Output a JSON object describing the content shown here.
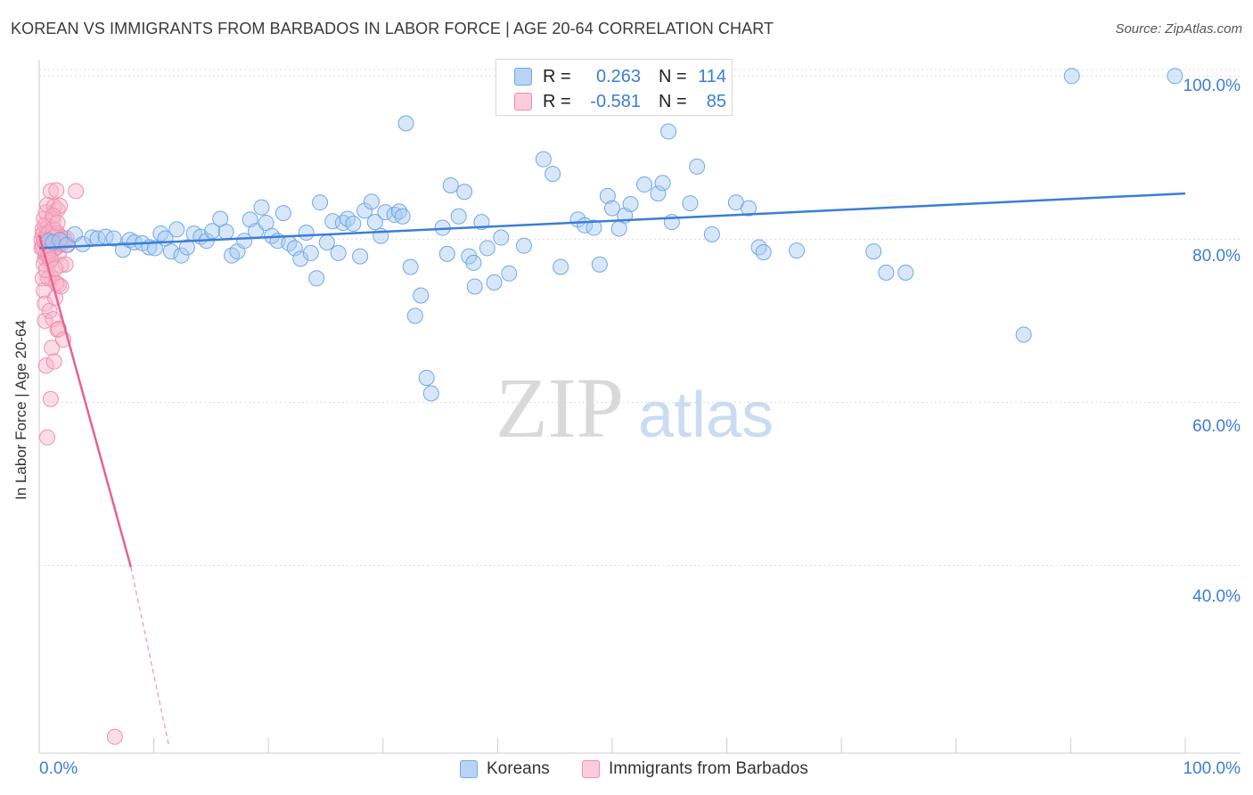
{
  "title": "KOREAN VS IMMIGRANTS FROM BARBADOS IN LABOR FORCE | AGE 20-64 CORRELATION CHART",
  "source": "Source: ZipAtlas.com",
  "watermark": {
    "zip": "ZIP",
    "atlas": "atlas"
  },
  "legend_top": {
    "rows": [
      {
        "r_label": "R =",
        "r_value": "0.263",
        "n_label": "N =",
        "n_value": "114",
        "color": "#6fa8e8"
      },
      {
        "r_label": "R =",
        "r_value": "-0.581",
        "n_label": "N =",
        "n_value": "85",
        "color": "#f28bab"
      }
    ]
  },
  "legend_bottom": [
    {
      "label": "Koreans",
      "color": "#6fa8e8"
    },
    {
      "label": "Immigrants from Barbados",
      "color": "#f28bab"
    }
  ],
  "colors": {
    "blue": "#3b7dd8",
    "blue_fill": "#a9c9f0",
    "pink": "#e8628f",
    "pink_fill": "#f7b3c8",
    "grid": "#dddddd",
    "tick_text": "#3b7dd8"
  },
  "chart_data": {
    "type": "scatter",
    "title": "KOREAN VS IMMIGRANTS FROM BARBADOS IN LABOR FORCE | AGE 20-64 CORRELATION CHART",
    "xlabel": "",
    "ylabel": "In Labor Force | Age 20-64",
    "xlim": [
      0,
      100
    ],
    "ylim": [
      17,
      102
    ],
    "x_tick_labels": [
      "0.0%",
      "100.0%"
    ],
    "y_ticks": [
      40,
      60,
      80,
      100
    ],
    "y_tick_labels": [
      "40.0%",
      "60.0%",
      "80.0%",
      "100.0%"
    ],
    "grid": true,
    "legend": "bottom-center",
    "series": [
      {
        "name": "Koreans",
        "color": "#6fa8e8",
        "trend": {
          "x": [
            0,
            100
          ],
          "y": [
            78.9,
            85.6
          ],
          "style": "solid"
        },
        "points": [
          [
            0.8,
            79.8
          ],
          [
            1.2,
            79.6
          ],
          [
            1.8,
            79.9
          ],
          [
            2.4,
            79.3
          ],
          [
            3.1,
            80.6
          ],
          [
            3.8,
            79.4
          ],
          [
            4.6,
            80.2
          ],
          [
            5.1,
            80.1
          ],
          [
            5.8,
            80.3
          ],
          [
            6.5,
            80.1
          ],
          [
            7.3,
            78.7
          ],
          [
            7.9,
            79.9
          ],
          [
            8.3,
            79.6
          ],
          [
            9.0,
            79.5
          ],
          [
            9.6,
            79.0
          ],
          [
            10.1,
            78.9
          ],
          [
            10.6,
            80.7
          ],
          [
            11.0,
            80.1
          ],
          [
            11.5,
            78.5
          ],
          [
            12.0,
            81.2
          ],
          [
            12.4,
            78.0
          ],
          [
            12.9,
            79.0
          ],
          [
            13.5,
            80.7
          ],
          [
            14.1,
            80.3
          ],
          [
            14.6,
            79.8
          ],
          [
            15.1,
            81.0
          ],
          [
            15.8,
            82.5
          ],
          [
            16.3,
            80.9
          ],
          [
            16.8,
            78.0
          ],
          [
            17.3,
            78.5
          ],
          [
            17.9,
            79.8
          ],
          [
            18.4,
            82.4
          ],
          [
            18.9,
            81.0
          ],
          [
            19.4,
            83.9
          ],
          [
            19.8,
            82.0
          ],
          [
            20.3,
            80.4
          ],
          [
            20.8,
            79.8
          ],
          [
            21.3,
            83.2
          ],
          [
            21.8,
            79.5
          ],
          [
            22.3,
            78.9
          ],
          [
            22.8,
            77.6
          ],
          [
            23.3,
            80.8
          ],
          [
            23.7,
            78.3
          ],
          [
            24.2,
            75.2
          ],
          [
            24.5,
            84.5
          ],
          [
            25.1,
            79.6
          ],
          [
            25.6,
            82.2
          ],
          [
            26.1,
            78.3
          ],
          [
            26.5,
            82.0
          ],
          [
            26.9,
            82.5
          ],
          [
            27.4,
            81.9
          ],
          [
            28.0,
            77.9
          ],
          [
            28.4,
            83.5
          ],
          [
            29.0,
            84.6
          ],
          [
            29.3,
            82.1
          ],
          [
            29.8,
            80.4
          ],
          [
            30.2,
            83.3
          ],
          [
            31.0,
            83.0
          ],
          [
            31.4,
            83.4
          ],
          [
            31.7,
            82.8
          ],
          [
            32.0,
            94.2
          ],
          [
            32.4,
            76.6
          ],
          [
            32.8,
            70.6
          ],
          [
            33.3,
            73.1
          ],
          [
            33.8,
            63.0
          ],
          [
            34.2,
            61.1
          ],
          [
            35.2,
            81.4
          ],
          [
            35.6,
            78.2
          ],
          [
            35.9,
            86.6
          ],
          [
            36.6,
            82.8
          ],
          [
            37.1,
            85.8
          ],
          [
            37.5,
            77.9
          ],
          [
            38.0,
            74.2
          ],
          [
            38.6,
            82.1
          ],
          [
            39.1,
            78.9
          ],
          [
            39.7,
            74.7
          ],
          [
            40.3,
            80.2
          ],
          [
            41.0,
            75.8
          ],
          [
            44.0,
            89.8
          ],
          [
            44.8,
            88.0
          ],
          [
            45.5,
            76.6
          ],
          [
            47.0,
            82.4
          ],
          [
            47.6,
            81.7
          ],
          [
            48.4,
            81.4
          ],
          [
            48.9,
            76.9
          ],
          [
            49.6,
            85.3
          ],
          [
            50.0,
            83.8
          ],
          [
            50.6,
            81.3
          ],
          [
            51.1,
            82.9
          ],
          [
            51.6,
            84.3
          ],
          [
            52.8,
            86.7
          ],
          [
            54.0,
            85.6
          ],
          [
            54.4,
            86.9
          ],
          [
            54.9,
            93.2
          ],
          [
            55.2,
            82.1
          ],
          [
            57.4,
            88.9
          ],
          [
            58.7,
            80.6
          ],
          [
            60.8,
            84.5
          ],
          [
            61.9,
            83.8
          ],
          [
            62.8,
            79.0
          ],
          [
            63.2,
            78.4
          ],
          [
            66.1,
            78.6
          ],
          [
            72.8,
            78.5
          ],
          [
            73.9,
            75.9
          ],
          [
            75.6,
            75.9
          ],
          [
            85.9,
            68.3
          ],
          [
            90.1,
            100.0
          ],
          [
            99.1,
            100.0
          ],
          [
            41.0,
            99.9
          ],
          [
            37.9,
            77.1
          ],
          [
            42.3,
            79.2
          ],
          [
            56.8,
            84.4
          ]
        ]
      },
      {
        "name": "Immigrants from Barbados",
        "color": "#f28bab",
        "trend": {
          "x": [
            0,
            8.0
          ],
          "y": [
            80.5,
            39.8
          ],
          "style": "solid",
          "dashed_extension": {
            "x": [
              8.0,
              11.3
            ],
            "y": [
              39.8,
              18.0
            ]
          }
        },
        "points": [
          [
            0.2,
            80.0
          ],
          [
            0.3,
            79.1
          ],
          [
            0.3,
            81.2
          ],
          [
            0.4,
            78.6
          ],
          [
            0.4,
            82.5
          ],
          [
            0.5,
            79.6
          ],
          [
            0.5,
            77.7
          ],
          [
            0.6,
            80.4
          ],
          [
            0.6,
            83.3
          ],
          [
            0.7,
            78.2
          ],
          [
            0.7,
            84.2
          ],
          [
            0.8,
            79.0
          ],
          [
            0.8,
            81.6
          ],
          [
            0.9,
            77.2
          ],
          [
            0.9,
            80.9
          ],
          [
            1.0,
            85.9
          ],
          [
            1.0,
            79.4
          ],
          [
            1.1,
            78.6
          ],
          [
            1.1,
            75.2
          ],
          [
            1.2,
            80.1
          ],
          [
            1.2,
            82.4
          ],
          [
            1.3,
            79.3
          ],
          [
            1.3,
            84.0
          ],
          [
            1.4,
            78.9
          ],
          [
            1.4,
            81.1
          ],
          [
            1.5,
            86.0
          ],
          [
            1.5,
            79.7
          ],
          [
            1.6,
            80.5
          ],
          [
            1.6,
            83.6
          ],
          [
            1.7,
            78.2
          ],
          [
            1.7,
            74.4
          ],
          [
            1.8,
            80.3
          ],
          [
            1.8,
            84.1
          ],
          [
            1.9,
            79.4
          ],
          [
            1.9,
            76.8
          ],
          [
            2.0,
            80.2
          ],
          [
            0.3,
            75.2
          ],
          [
            0.4,
            73.7
          ],
          [
            0.5,
            72.1
          ],
          [
            0.5,
            70.0
          ],
          [
            0.6,
            64.5
          ],
          [
            0.7,
            55.7
          ],
          [
            0.8,
            75.2
          ],
          [
            0.9,
            71.2
          ],
          [
            1.0,
            60.4
          ],
          [
            1.1,
            66.7
          ],
          [
            1.2,
            70.2
          ],
          [
            1.3,
            65.0
          ],
          [
            1.4,
            72.8
          ],
          [
            1.5,
            74.6
          ],
          [
            1.6,
            68.9
          ],
          [
            1.7,
            69.0
          ],
          [
            2.1,
            67.7
          ],
          [
            2.3,
            76.9
          ],
          [
            3.2,
            85.9
          ],
          [
            0.2,
            78.9
          ],
          [
            0.3,
            80.6
          ],
          [
            0.4,
            79.9
          ],
          [
            0.5,
            81.7
          ],
          [
            0.6,
            78.1
          ],
          [
            0.7,
            79.5
          ],
          [
            0.8,
            80.8
          ],
          [
            0.9,
            78.5
          ],
          [
            1.0,
            80.0
          ],
          [
            1.1,
            79.2
          ],
          [
            1.2,
            81.3
          ],
          [
            1.3,
            78.8
          ],
          [
            1.4,
            80.4
          ],
          [
            1.5,
            79.0
          ],
          [
            1.6,
            80.7
          ],
          [
            1.7,
            79.6
          ],
          [
            1.8,
            79.9
          ],
          [
            2.0,
            79.5
          ],
          [
            2.2,
            80.0
          ],
          [
            2.5,
            79.3
          ],
          [
            0.4,
            77.0
          ],
          [
            0.6,
            76.2
          ],
          [
            0.8,
            78.0
          ],
          [
            1.0,
            77.5
          ],
          [
            1.2,
            82.9
          ],
          [
            1.4,
            76.4
          ],
          [
            1.6,
            82.0
          ],
          [
            6.6,
            19.0
          ],
          [
            1.9,
            74.2
          ],
          [
            2.4,
            80.1
          ]
        ]
      }
    ]
  }
}
